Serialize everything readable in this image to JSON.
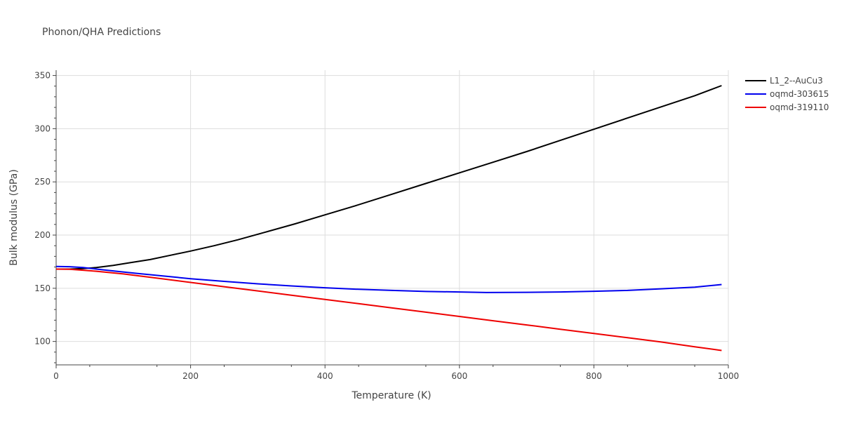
{
  "chart_data": {
    "type": "line",
    "title": "Phonon/QHA Predictions",
    "xlabel": "Temperature (K)",
    "ylabel": "Bulk modulus (GPa)",
    "xlim": [
      0,
      1000
    ],
    "ylim": [
      78,
      355
    ],
    "x_ticks": [
      0,
      200,
      400,
      600,
      800,
      1000
    ],
    "y_ticks": [
      100,
      150,
      200,
      250,
      300,
      350
    ],
    "grid": true,
    "legend_position": "top-right",
    "series": [
      {
        "name": "L1_2--AuCu3",
        "color": "#000000",
        "x": [
          0,
          20,
          40,
          60,
          85,
          110,
          140,
          170,
          200,
          235,
          270,
          310,
          355,
          400,
          445,
          495,
          545,
          600,
          650,
          700,
          750,
          800,
          850,
          900,
          950,
          990
        ],
        "y": [
          168,
          168,
          168.5,
          169.5,
          171.5,
          174,
          177,
          181,
          185,
          190,
          195.5,
          202.5,
          210.5,
          219,
          227.5,
          237.5,
          247.5,
          258.5,
          268.5,
          278.5,
          289,
          299.5,
          310,
          320.5,
          331,
          340.5
        ]
      },
      {
        "name": "oqmd-303615",
        "color": "#0000ee",
        "x": [
          0,
          20,
          40,
          60,
          90,
          120,
          160,
          200,
          250,
          300,
          350,
          400,
          450,
          500,
          550,
          600,
          640,
          700,
          750,
          800,
          850,
          900,
          950,
          990
        ],
        "y": [
          170.5,
          170.3,
          169.5,
          168,
          166,
          164,
          161.5,
          159,
          156.5,
          154.2,
          152.2,
          150.5,
          149,
          148,
          147,
          146.5,
          146,
          146.2,
          146.5,
          147.2,
          148,
          149.5,
          151,
          153.5
        ]
      },
      {
        "name": "oqmd-319110",
        "color": "#ee0000",
        "x": [
          0,
          20,
          40,
          60,
          100,
          150,
          200,
          250,
          300,
          350,
          400,
          450,
          500,
          550,
          600,
          650,
          700,
          750,
          800,
          850,
          900,
          950,
          990
        ],
        "y": [
          168,
          167.8,
          167,
          166,
          163.5,
          159.5,
          155.5,
          151.5,
          147.5,
          143.5,
          139.5,
          135.5,
          131.5,
          127.5,
          123.5,
          119.5,
          115.5,
          111.5,
          107.5,
          103.5,
          99.5,
          95,
          91.5
        ]
      }
    ]
  }
}
